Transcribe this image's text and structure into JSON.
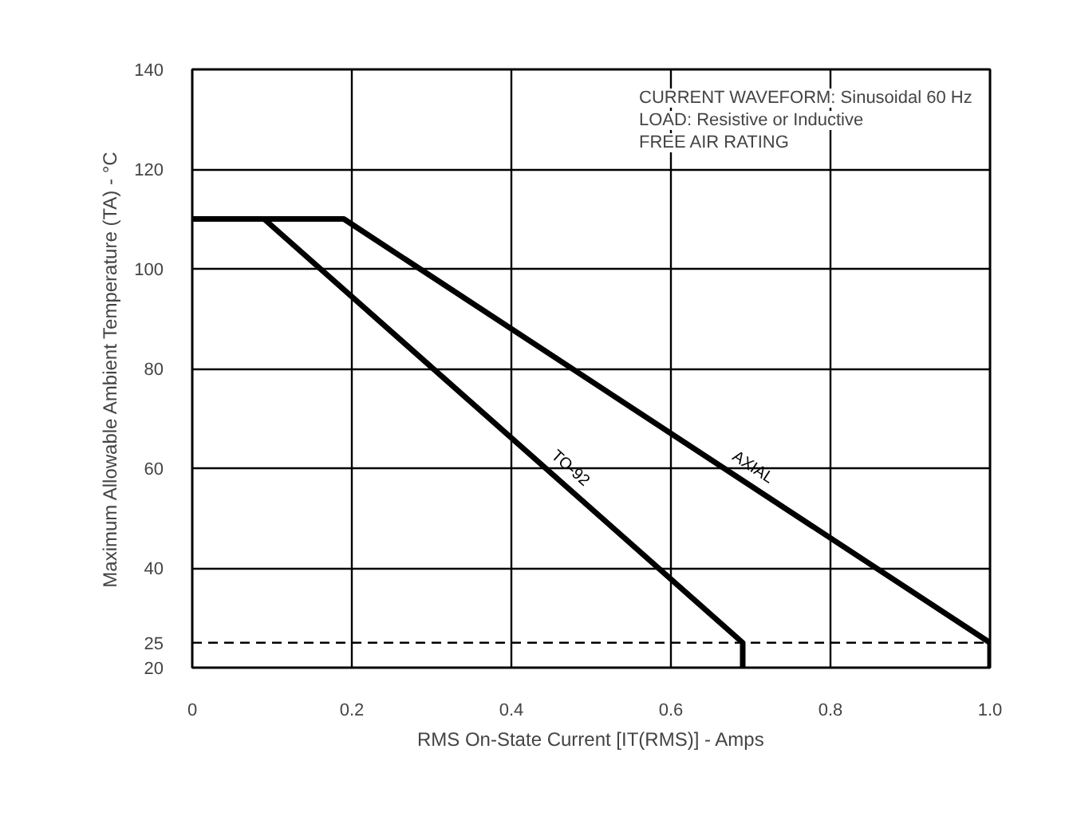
{
  "chart_data": {
    "type": "line",
    "xlabel": "RMS On-State Current [IT(RMS)] - Amps",
    "ylabel": "Maximum Allowable Ambient Temperature (TA) - °C",
    "annotations": [
      "CURRENT WAVEFORM: Sinusoidal  60 Hz",
      "LOAD: Resistive or Inductive",
      "FREE AIR RATING"
    ],
    "series": [
      {
        "name": "TO-92",
        "color": "#000000",
        "x": [
          0,
          0.09,
          0.69,
          0.69
        ],
        "values": [
          110,
          110,
          25,
          20
        ]
      },
      {
        "name": "AXIAL",
        "color": "#000000",
        "x": [
          0,
          0.19,
          1.0,
          1.0
        ],
        "values": [
          110,
          110,
          25,
          20
        ]
      }
    ],
    "xlim": [
      0,
      1.0
    ],
    "ylim": [
      20,
      140
    ],
    "xticks": [
      0,
      0.2,
      0.4,
      0.6,
      0.8,
      {
        "value": 1.0,
        "label": "1.0"
      }
    ],
    "yticks": [
      20,
      25,
      40,
      60,
      80,
      100,
      120,
      140
    ],
    "ref_lines": [
      {
        "axis": "y",
        "value": 25,
        "label": null,
        "line_style": "dashed"
      }
    ],
    "grid": true,
    "legend": false,
    "line_style": "solid",
    "marker": "none"
  }
}
